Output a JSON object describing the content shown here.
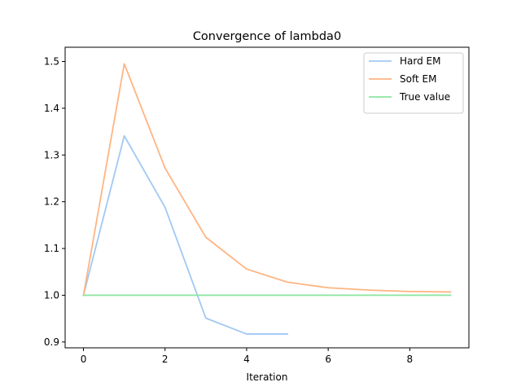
{
  "chart_data": {
    "type": "line",
    "title": "Convergence of lambda0",
    "xlabel": "Iteration",
    "ylabel": "",
    "xlim": [
      -0.45,
      9.45
    ],
    "ylim": [
      0.8875,
      1.5305
    ],
    "x_ticks": [
      0,
      2,
      4,
      6,
      8
    ],
    "y_ticks": [
      0.9,
      1.0,
      1.1,
      1.2,
      1.3,
      1.4,
      1.5
    ],
    "x_tick_labels": [
      "0",
      "2",
      "4",
      "6",
      "8"
    ],
    "y_tick_labels": [
      "0.9",
      "1.0",
      "1.1",
      "1.2",
      "1.3",
      "1.4",
      "1.5"
    ],
    "grid": false,
    "legend_position": "top-right",
    "series": [
      {
        "name": "Hard EM",
        "color": "#a1c9f4",
        "x": [
          0,
          1,
          2,
          3,
          4,
          5
        ],
        "y": [
          1.0,
          1.341,
          1.188,
          0.951,
          0.917,
          0.917
        ]
      },
      {
        "name": "Soft EM",
        "color": "#ffb482",
        "x": [
          0,
          1,
          2,
          3,
          4,
          5,
          6,
          7,
          8,
          9
        ],
        "y": [
          1.0,
          1.495,
          1.272,
          1.124,
          1.056,
          1.028,
          1.016,
          1.011,
          1.008,
          1.007
        ]
      },
      {
        "name": "True value",
        "color": "#8de5a1",
        "x": [
          0,
          9
        ],
        "y": [
          1.0,
          1.0
        ]
      }
    ]
  }
}
